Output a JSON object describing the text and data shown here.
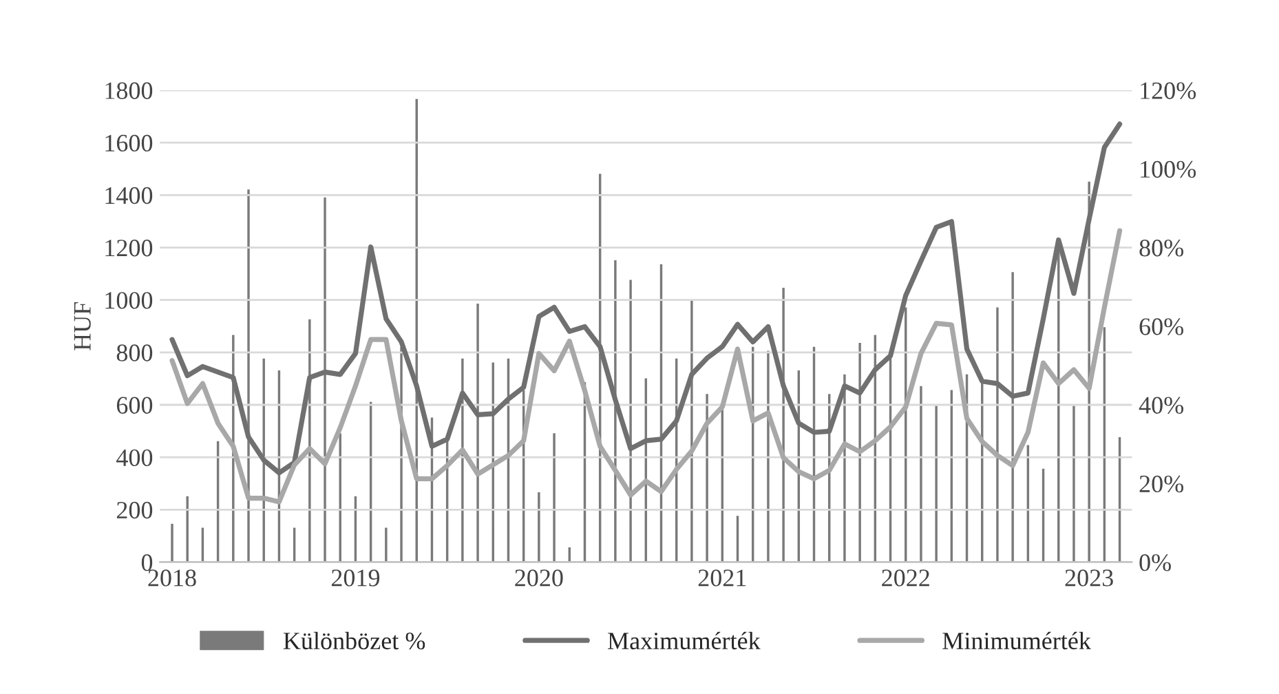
{
  "chart_data": {
    "type": "line",
    "ylabel": "HUF",
    "categories": [
      "2018",
      null,
      null,
      null,
      null,
      null,
      null,
      null,
      null,
      null,
      null,
      null,
      "2019",
      null,
      null,
      null,
      null,
      null,
      null,
      null,
      null,
      null,
      null,
      null,
      "2020",
      null,
      null,
      null,
      null,
      null,
      null,
      null,
      null,
      null,
      null,
      null,
      "2021",
      null,
      null,
      null,
      null,
      null,
      null,
      null,
      null,
      null,
      null,
      null,
      "2022",
      null,
      null,
      null,
      null,
      null,
      null,
      null,
      null,
      null,
      null,
      null,
      "2023",
      null,
      null
    ],
    "series": [
      {
        "name": "Különbözet %",
        "type": "bar",
        "axis": "y2",
        "color": "#7a7a7a",
        "values": [
          10,
          17,
          9,
          31,
          58,
          95,
          52,
          49,
          9,
          62,
          93,
          33,
          17,
          41,
          9,
          55,
          118,
          37,
          31,
          52,
          66,
          51,
          52,
          44,
          18,
          33,
          4,
          46,
          99,
          77,
          72,
          47,
          76,
          52,
          67,
          43,
          39,
          12,
          55,
          54,
          70,
          49,
          55,
          43,
          48,
          56,
          58,
          53,
          65,
          45,
          40,
          44,
          48,
          46,
          65,
          74,
          30,
          24,
          80,
          40,
          97,
          60,
          32
        ]
      },
      {
        "name": "Maximumérték",
        "color": "#707070",
        "values": [
          849,
          711,
          746,
          725,
          704,
          477,
          389,
          341,
          380,
          704,
          725,
          716,
          796,
          1202,
          928,
          840,
          672,
          442,
          469,
          645,
          562,
          566,
          622,
          667,
          937,
          972,
          880,
          898,
          822,
          619,
          433,
          463,
          469,
          539,
          716,
          778,
          822,
          907,
          840,
          898,
          672,
          530,
          495,
          499,
          672,
          645,
          734,
          787,
          1017,
          1149,
          1277,
          1299,
          813,
          690,
          681,
          633,
          645,
          928,
          1229,
          1025,
          1308,
          1582,
          1671
        ]
      },
      {
        "name": "Minimumérték",
        "color": "#a8a8a8",
        "values": [
          769,
          605,
          681,
          530,
          442,
          244,
          244,
          230,
          371,
          433,
          375,
          513,
          672,
          849,
          849,
          539,
          318,
          318,
          368,
          428,
          336,
          371,
          407,
          463,
          796,
          730,
          843,
          654,
          442,
          350,
          256,
          309,
          269,
          354,
          424,
          530,
          592,
          813,
          539,
          569,
          398,
          345,
          318,
          350,
          451,
          421,
          463,
          516,
          592,
          796,
          911,
          905,
          548,
          460,
          407,
          368,
          495,
          760,
          681,
          734,
          663,
          972,
          1264
        ]
      }
    ],
    "ylim": [
      0,
      1800
    ],
    "yticks": [
      0,
      200,
      400,
      600,
      800,
      1000,
      1200,
      1400,
      1600,
      1800
    ],
    "y2lim": [
      0,
      120
    ],
    "y2ticks": [
      {
        "value": 0,
        "label": "0%"
      },
      {
        "value": 20,
        "label": "20%"
      },
      {
        "value": 40,
        "label": "40%"
      },
      {
        "value": 60,
        "label": "60%"
      },
      {
        "value": 80,
        "label": "80%"
      },
      {
        "value": 100,
        "label": "100%"
      },
      {
        "value": 120,
        "label": "120%"
      }
    ],
    "grid": "y",
    "legend": "bottom",
    "line_style": "solid"
  }
}
